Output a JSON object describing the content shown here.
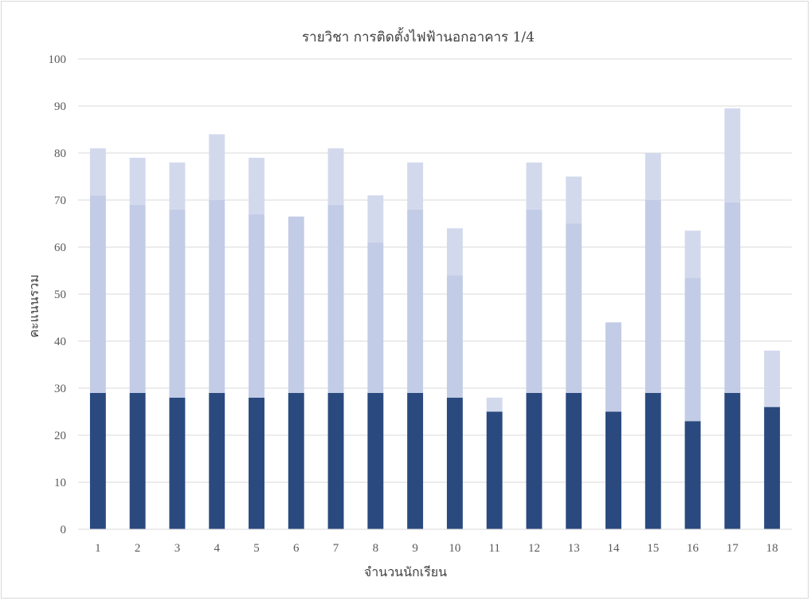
{
  "chart_data": {
    "type": "bar",
    "stacked": true,
    "title": "รายวิชา การติดตั้งไฟฟ้านอกอาคาร 1/4",
    "xlabel": "จำนวนนักเรียน",
    "ylabel": "คะแนนรวม",
    "ylim": [
      0,
      100
    ],
    "yticks": [
      0,
      10,
      20,
      30,
      40,
      50,
      60,
      70,
      80,
      90,
      100
    ],
    "grid": true,
    "categories": [
      "1",
      "2",
      "3",
      "4",
      "5",
      "6",
      "7",
      "8",
      "9",
      "10",
      "11",
      "12",
      "13",
      "14",
      "15",
      "16",
      "17",
      "18"
    ],
    "series": [
      {
        "color": "#2a4a7f",
        "values": [
          29,
          29,
          28,
          29,
          28,
          29,
          29,
          29,
          29,
          28,
          25,
          29,
          29,
          25,
          29,
          23,
          29,
          26
        ]
      },
      {
        "color": "#c3cce6",
        "values": [
          42,
          40,
          40,
          41,
          39,
          37.5,
          40,
          32,
          39,
          26,
          0,
          39,
          36,
          19,
          41,
          30.5,
          40.5,
          0
        ]
      },
      {
        "color": "#d3d9ed",
        "values": [
          10,
          10,
          10,
          14,
          12,
          0,
          12,
          10,
          10,
          10,
          3,
          10,
          10,
          0,
          10,
          10,
          20,
          12
        ]
      }
    ]
  }
}
